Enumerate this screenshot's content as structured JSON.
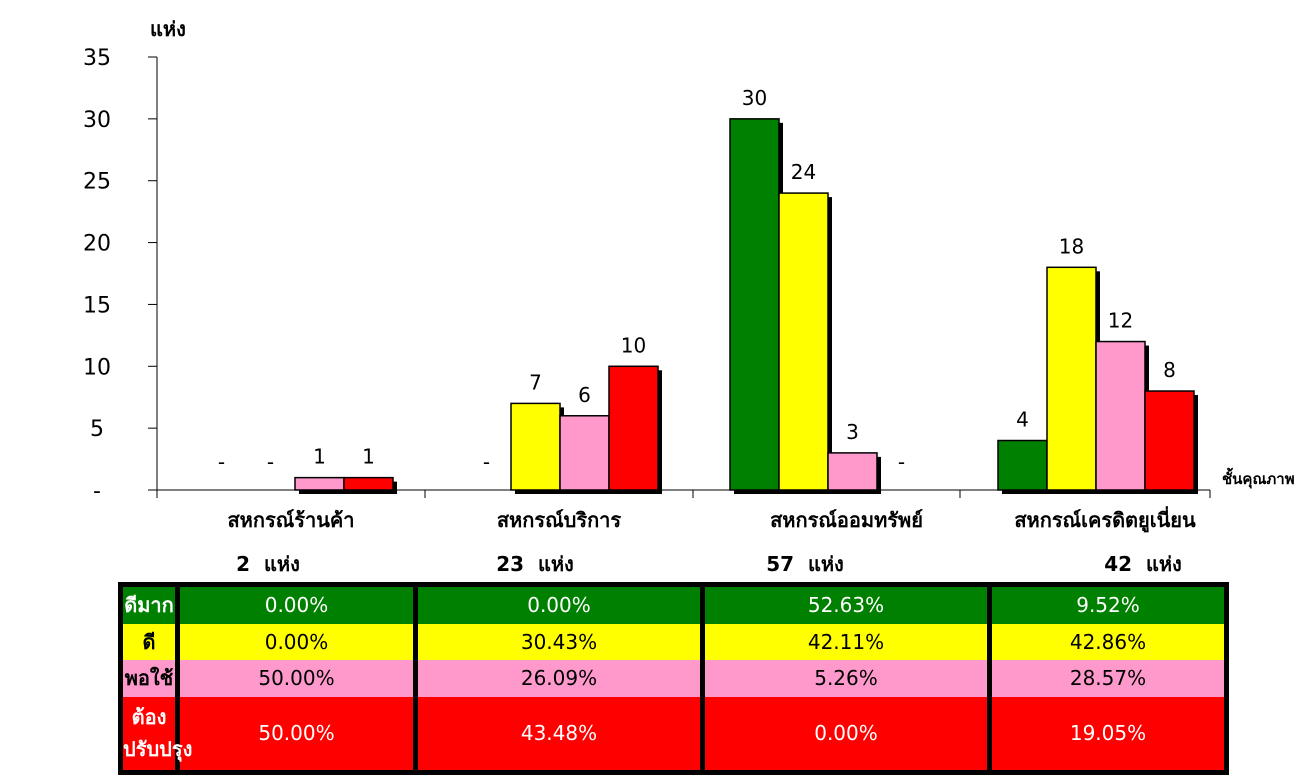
{
  "chart_data": {
    "type": "bar",
    "ylabel": "แห่ง",
    "xlabel": "ชั้นคุณภาพ",
    "ylim": [
      0,
      35
    ],
    "yticks": [
      0,
      5,
      10,
      15,
      20,
      25,
      30,
      35
    ],
    "ytick_labels": [
      "-",
      "5",
      "10",
      "15",
      "20",
      "25",
      "30",
      "35"
    ],
    "grid": false,
    "categories": [
      "สหกรณ์ร้านค้า",
      "สหกรณ์บริการ",
      "สหกรณ์ออมทรัพย์",
      "สหกรณ์เครดิตยูเนี่ยน"
    ],
    "series": [
      {
        "name": "ดีมาก",
        "color": "#008000",
        "values": [
          0,
          0,
          30,
          4
        ],
        "labels": [
          "-",
          "-",
          "30",
          "4"
        ]
      },
      {
        "name": "ดี",
        "color": "#ffff00",
        "values": [
          0,
          7,
          24,
          18
        ],
        "labels": [
          "-",
          "7",
          "24",
          "18"
        ]
      },
      {
        "name": "พอใช้",
        "color": "#ff99cc",
        "values": [
          1,
          6,
          3,
          12
        ],
        "labels": [
          "1",
          "6",
          "3",
          "12"
        ]
      },
      {
        "name": "ต้องปรับปรุง",
        "color": "#ff0000",
        "values": [
          1,
          10,
          0,
          8
        ],
        "labels": [
          "1",
          "10",
          "-",
          "8"
        ]
      }
    ],
    "category_totals": [
      "2  แห่ง",
      "23  แห่ง",
      "57  แห่ง",
      "42  แห่ง"
    ]
  },
  "table": {
    "rows": [
      {
        "label": "ดีมาก",
        "values": [
          "0.00%",
          "0.00%",
          "52.63%",
          "9.52%"
        ]
      },
      {
        "label": "ดี",
        "values": [
          "0.00%",
          "30.43%",
          "42.11%",
          "42.86%"
        ]
      },
      {
        "label": "พอใช้",
        "values": [
          "50.00%",
          "26.09%",
          "5.26%",
          "28.57%"
        ]
      },
      {
        "label": "ต้องปรับปรุง",
        "values": [
          "50.00%",
          "43.48%",
          "0.00%",
          "19.05%"
        ]
      }
    ]
  }
}
